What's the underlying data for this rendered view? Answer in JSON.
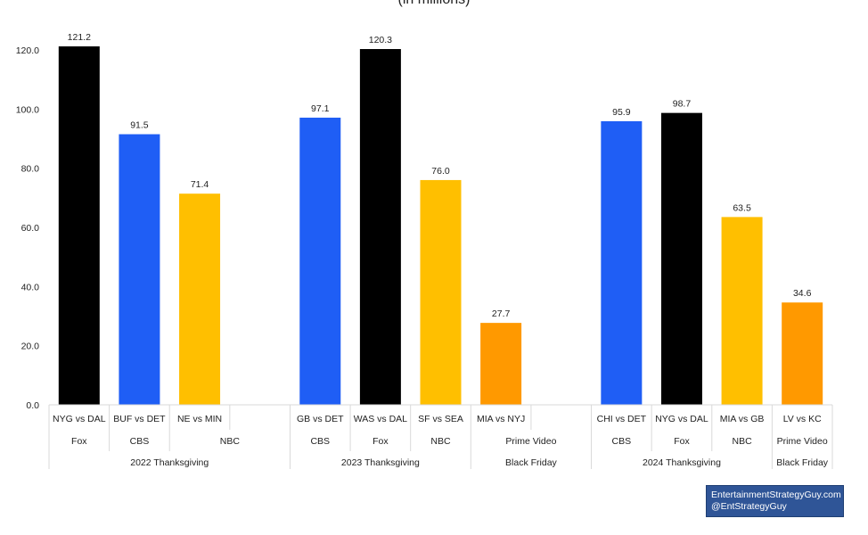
{
  "subtitle": "(in millions)",
  "credit": {
    "line1": "EntertainmentStrategyGuy.com",
    "line2": "@EntStrategyGuy"
  },
  "colors": {
    "Fox": "#000000",
    "CBS": "#1f5ef5",
    "NBC": "#ffbf00",
    "Prime Video": "#ff9900"
  },
  "chart_data": {
    "type": "bar",
    "title": "",
    "subtitle": "(in millions)",
    "xlabel": "",
    "ylabel": "",
    "ylim": [
      0,
      120
    ],
    "yticks": [
      "0.0",
      "20.0",
      "40.0",
      "60.0",
      "80.0",
      "100.0",
      "120.0"
    ],
    "grid": false,
    "categories": [
      "NYG vs DAL",
      "BUF vs DET",
      "NE vs MIN",
      "",
      "GB vs DET",
      "WAS vs DAL",
      "SF vs SEA",
      "MIA vs NYJ",
      "",
      "CHI vs DET",
      "NYG vs DAL",
      "MIA vs GB",
      "LV vs KC"
    ],
    "values": [
      121.2,
      91.5,
      71.4,
      null,
      97.1,
      120.3,
      76.0,
      27.7,
      null,
      95.9,
      98.7,
      63.5,
      34.6
    ],
    "value_labels": [
      "121.2",
      "91.5",
      "71.4",
      "",
      "97.1",
      "120.3",
      "76.0",
      "27.7",
      "",
      "95.9",
      "98.7",
      "63.5",
      "34.6"
    ],
    "networks": [
      "Fox",
      "CBS",
      "NBC",
      "",
      "CBS",
      "Fox",
      "NBC",
      "Prime Video",
      "",
      "CBS",
      "Fox",
      "NBC",
      "Prime Video"
    ],
    "network_groups": [
      {
        "label": "Fox",
        "start": 0,
        "end": 0
      },
      {
        "label": "CBS",
        "start": 1,
        "end": 1
      },
      {
        "label": "NBC",
        "start": 2,
        "end": 3
      },
      {
        "label": "CBS",
        "start": 4,
        "end": 4
      },
      {
        "label": "Fox",
        "start": 5,
        "end": 5
      },
      {
        "label": "NBC",
        "start": 6,
        "end": 6
      },
      {
        "label": "Prime Video",
        "start": 7,
        "end": 8
      },
      {
        "label": "CBS",
        "start": 9,
        "end": 9
      },
      {
        "label": "Fox",
        "start": 10,
        "end": 10
      },
      {
        "label": "NBC",
        "start": 11,
        "end": 11
      },
      {
        "label": "Prime Video",
        "start": 12,
        "end": 12
      }
    ],
    "event_groups": [
      {
        "label": "2022 Thanksgiving",
        "start": 0,
        "end": 3
      },
      {
        "label": "2023 Thanksgiving",
        "start": 4,
        "end": 6
      },
      {
        "label": "Black Friday",
        "start": 7,
        "end": 8
      },
      {
        "label": "2024 Thanksgiving",
        "start": 9,
        "end": 11
      },
      {
        "label": "Black Friday",
        "start": 12,
        "end": 12
      }
    ]
  }
}
